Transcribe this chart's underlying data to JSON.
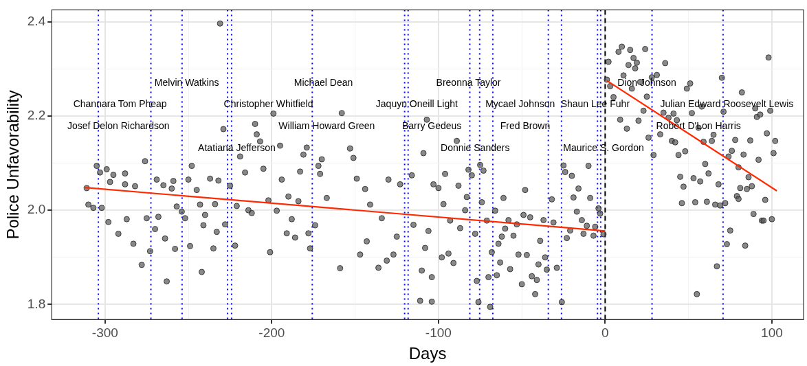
{
  "chart_data": {
    "type": "scatter",
    "xlabel": "Days",
    "ylabel": "Police Unfavorability",
    "xlim": [
      -332,
      119
    ],
    "ylim": [
      1.768,
      2.425
    ],
    "xticks": [
      -300,
      {
        "value": -250,
        "label": null
      },
      -200,
      {
        "value": -150,
        "label": null
      },
      -100,
      {
        "value": -50,
        "label": null
      },
      0,
      {
        "value": 50,
        "label": null
      },
      100
    ],
    "yticks": [
      1.8,
      {
        "value": 1.9,
        "label": null
      },
      {
        "value": 2,
        "label": "2.0"
      },
      {
        "value": 2.1,
        "label": null
      },
      2.2,
      {
        "value": 2.3,
        "label": null
      },
      2.4
    ],
    "grid": true,
    "legend": false,
    "marker": "circle",
    "series": [
      {
        "color": "#555555",
        "x": [
          -311,
          -305,
          -303,
          -310,
          -307,
          -302,
          -299,
          -298,
          -295,
          -297,
          -292,
          -288,
          -288,
          -287,
          -283,
          -282,
          -278,
          -276,
          -275,
          -273,
          -270,
          -269,
          -268,
          -265,
          -264,
          -263,
          -260,
          -259,
          -258,
          -257,
          -254,
          -252,
          -250,
          -249,
          -248,
          -245,
          -243,
          -241,
          -242,
          -240,
          -237,
          -235,
          -234,
          -233,
          -232,
          -231,
          -229,
          -228,
          -225,
          -222,
          -221,
          -219,
          -216,
          -214,
          -212,
          -210,
          -209,
          -207,
          -205,
          -202,
          -201,
          -199,
          -197,
          -195,
          -194,
          -191,
          -190,
          -188,
          -186,
          -184,
          -183,
          -181,
          -179,
          -178,
          -177,
          -174,
          -172,
          -170,
          -171,
          -167,
          -158,
          -153,
          -151,
          -159,
          -149,
          -147,
          -143,
          -141,
          -144,
          -136,
          -134,
          -130,
          -131,
          -127,
          -125,
          -123,
          -116,
          -115,
          -111,
          -110,
          -109,
          -107,
          -108,
          -106,
          -104,
          -104,
          -103,
          -100,
          -97,
          -98,
          -96,
          -93,
          -94,
          -91,
          -89,
          -88,
          -87,
          -84,
          -82,
          -83,
          -80,
          -78,
          -77,
          -76,
          -75,
          -73,
          -74,
          -71,
          -69,
          -70,
          -68,
          -66,
          -65,
          -64,
          -63,
          -62,
          -61,
          -60,
          -58,
          -57,
          -55,
          -53,
          -52,
          -50,
          -49,
          -48,
          -47,
          -45,
          -44,
          -42,
          -41,
          -40,
          -39,
          -37,
          -36,
          -35,
          -32,
          -31,
          -29,
          -26,
          -25,
          -24,
          -23,
          -21,
          -20,
          -19,
          -17,
          -16,
          -14,
          -13,
          -11,
          -10,
          -9,
          -7,
          -6,
          -4,
          -3,
          -1,
          2,
          1,
          3,
          5,
          8,
          10,
          9,
          11,
          13,
          14,
          15,
          17,
          18,
          19,
          16,
          20,
          21,
          23,
          24,
          25,
          26,
          28,
          29,
          31,
          33,
          35,
          36,
          38,
          40,
          41,
          42,
          43,
          44,
          45,
          47,
          46,
          48,
          49,
          51,
          52,
          53,
          54,
          55,
          56,
          57,
          58,
          59,
          60,
          61,
          62,
          64,
          65,
          66,
          67,
          68,
          69,
          70,
          71,
          72,
          73,
          74,
          75,
          76,
          78,
          79,
          80,
          80,
          81,
          82,
          83,
          84,
          85,
          86,
          87,
          88,
          89,
          90,
          91,
          92,
          93,
          94,
          95,
          96,
          97,
          98,
          99,
          100,
          101,
          102
        ],
        "values": [
          2.047,
          2.094,
          2.08,
          2.012,
          2.005,
          2.005,
          2.087,
          1.975,
          2.075,
          2.06,
          1.95,
          2.078,
          2.055,
          1.981,
          1.929,
          2.051,
          1.884,
          2.104,
          1.983,
          1.913,
          1.96,
          2.065,
          1.986,
          2.053,
          1.94,
          1.849,
          2.046,
          2.062,
          1.918,
          2.008,
          1.997,
          1.983,
          2.065,
          1.924,
          2.094,
          2.043,
          2.012,
          1.968,
          1.869,
          1.99,
          2.067,
          1.919,
          2.013,
          1.954,
          2.063,
          2.396,
          2.172,
          1.97,
          2.052,
          1.925,
          2.009,
          2.114,
          2.08,
          2.0,
          1.994,
          2.183,
          2.161,
          2.146,
          2.088,
          2.021,
          1.911,
          2.205,
          1.999,
          2.137,
          2.065,
          1.951,
          2.029,
          1.981,
          1.942,
          2.019,
          2.082,
          2.118,
          2.133,
          1.951,
          1.919,
          1.968,
          2.094,
          2.108,
          2.077,
          2.026,
          2.206,
          2.131,
          2.111,
          1.877,
          2.067,
          1.906,
          1.934,
          2.012,
          2.045,
          1.878,
          1.983,
          2.065,
          1.893,
          1.906,
          1.944,
          2.055,
          2.074,
          1.969,
          1.808,
          1.872,
          2.121,
          2.192,
          1.92,
          1.956,
          1.806,
          1.858,
          2.055,
          2.047,
          2.013,
          1.9,
          2.077,
          1.978,
          1.908,
          1.888,
          2.147,
          2.052,
          1.962,
          2.0,
          2.086,
          2.028,
          2.074,
          1.95,
          1.85,
          1.805,
          2.096,
          2.084,
          2.017,
          1.978,
          1.795,
          1.858,
          1.911,
          1.999,
          1.862,
          1.929,
          1.889,
          1.944,
          2.026,
          1.961,
          1.979,
          1.875,
          1.946,
          1.97,
          1.906,
          1.843,
          1.99,
          2.043,
          1.905,
          1.985,
          1.86,
          1.822,
          1.852,
          1.885,
          1.935,
          1.979,
          1.9,
          1.874,
          2.023,
          1.974,
          1.878,
          1.805,
          2.095,
          2.081,
          1.941,
          1.957,
          2.073,
          2.027,
          1.997,
          2.046,
          1.979,
          1.95,
          1.967,
          2.094,
          2.026,
          1.946,
          1.965,
          2.004,
          1.993,
          1.949,
          2.315,
          2.277,
          2.263,
          2.24,
          2.336,
          2.347,
          2.192,
          2.286,
          2.173,
          2.308,
          2.34,
          2.323,
          2.301,
          2.313,
          2.258,
          2.19,
          2.272,
          2.211,
          2.342,
          2.241,
          2.154,
          2.282,
          2.117,
          2.287,
          2.161,
          2.207,
          2.312,
          2.196,
          2.147,
          2.205,
          2.144,
          2.191,
          2.117,
          2.071,
          2.05,
          2.015,
          2.125,
          2.258,
          2.269,
          2.206,
          2.068,
          2.017,
          1.822,
          2.175,
          2.061,
          2.22,
          2.145,
          2.098,
          2.018,
          2.078,
          2.147,
          2.16,
          2.012,
          1.881,
          2.055,
          2.01,
          2.281,
          2.209,
          2.015,
          1.928,
          2.114,
          1.957,
          2.126,
          2.149,
          2.03,
          2.024,
          2.091,
          2.047,
          2.25,
          2.118,
          1.925,
          2.045,
          2.07,
          2.148,
          2.051,
          1.992,
          2.216,
          2.198,
          2.107,
          2.203,
          1.978,
          1.978,
          2.022,
          2.163,
          2.324,
          2.211,
          1.981,
          2.121,
          2.147
        ]
      },
      {
        "type": "line",
        "marker": "none",
        "color": "#ff2a00",
        "x": [
          -312,
          0
        ],
        "values": [
          2.048,
          1.956
        ]
      },
      {
        "type": "line",
        "marker": "none",
        "color": "#ff2a00",
        "x": [
          1,
          103
        ],
        "values": [
          2.275,
          2.041
        ]
      }
    ],
    "ref_lines": [
      {
        "axis": "x",
        "value": -304,
        "color": "#0000ff",
        "line_style": "dotted"
      },
      {
        "axis": "x",
        "value": -272.5,
        "color": "#0000ff",
        "line_style": "dotted"
      },
      {
        "axis": "x",
        "value": -253.8,
        "color": "#0000ff",
        "line_style": "dotted"
      },
      {
        "axis": "x",
        "value": -226.5,
        "color": "#0000ff",
        "line_style": "dotted"
      },
      {
        "axis": "x",
        "value": -224.1,
        "color": "#0000ff",
        "line_style": "dotted"
      },
      {
        "axis": "x",
        "value": -175.7,
        "color": "#0000ff",
        "line_style": "dotted"
      },
      {
        "axis": "x",
        "value": -120.3,
        "color": "#0000ff",
        "line_style": "dotted"
      },
      {
        "axis": "x",
        "value": -118.2,
        "color": "#0000ff",
        "line_style": "dotted"
      },
      {
        "axis": "x",
        "value": -81.2,
        "color": "#0000ff",
        "line_style": "dotted"
      },
      {
        "axis": "x",
        "value": -75.3,
        "color": "#0000ff",
        "line_style": "dotted"
      },
      {
        "axis": "x",
        "value": -67.4,
        "color": "#0000ff",
        "line_style": "dotted"
      },
      {
        "axis": "x",
        "value": -34.1,
        "color": "#0000ff",
        "line_style": "dotted"
      },
      {
        "axis": "x",
        "value": -26.2,
        "color": "#0000ff",
        "line_style": "dotted"
      },
      {
        "axis": "x",
        "value": -4.6,
        "color": "#0000ff",
        "line_style": "dotted"
      },
      {
        "axis": "x",
        "value": -2.7,
        "color": "#0000ff",
        "line_style": "dotted"
      },
      {
        "axis": "x",
        "value": 28.1,
        "color": "#0000ff",
        "line_style": "dotted"
      },
      {
        "axis": "x",
        "value": 70.7,
        "color": "#0000ff",
        "line_style": "dotted"
      },
      {
        "axis": "x",
        "value": 0,
        "color": "#000000",
        "line_style": "dashed"
      }
    ],
    "annotations": [
      "Josef Delon Richardson",
      "Channara Tom Pheap",
      "Melvin Watkins",
      "Christopher Whitfield",
      "Atatiana Jefferson",
      "Michael Dean",
      "William Howard Green",
      "Jaquyn Oneill Light",
      "Barry Gedeus",
      "Breonna Taylor",
      "Donnie Sanders",
      "Mycael Johnson",
      "Fred Brown",
      "Shaun Lee Fuhr",
      "Maurice S. Gordon",
      "Dion Johnson",
      "Julian Edward Roosevelt Lewis",
      "Robert D'Lon Harris"
    ]
  }
}
